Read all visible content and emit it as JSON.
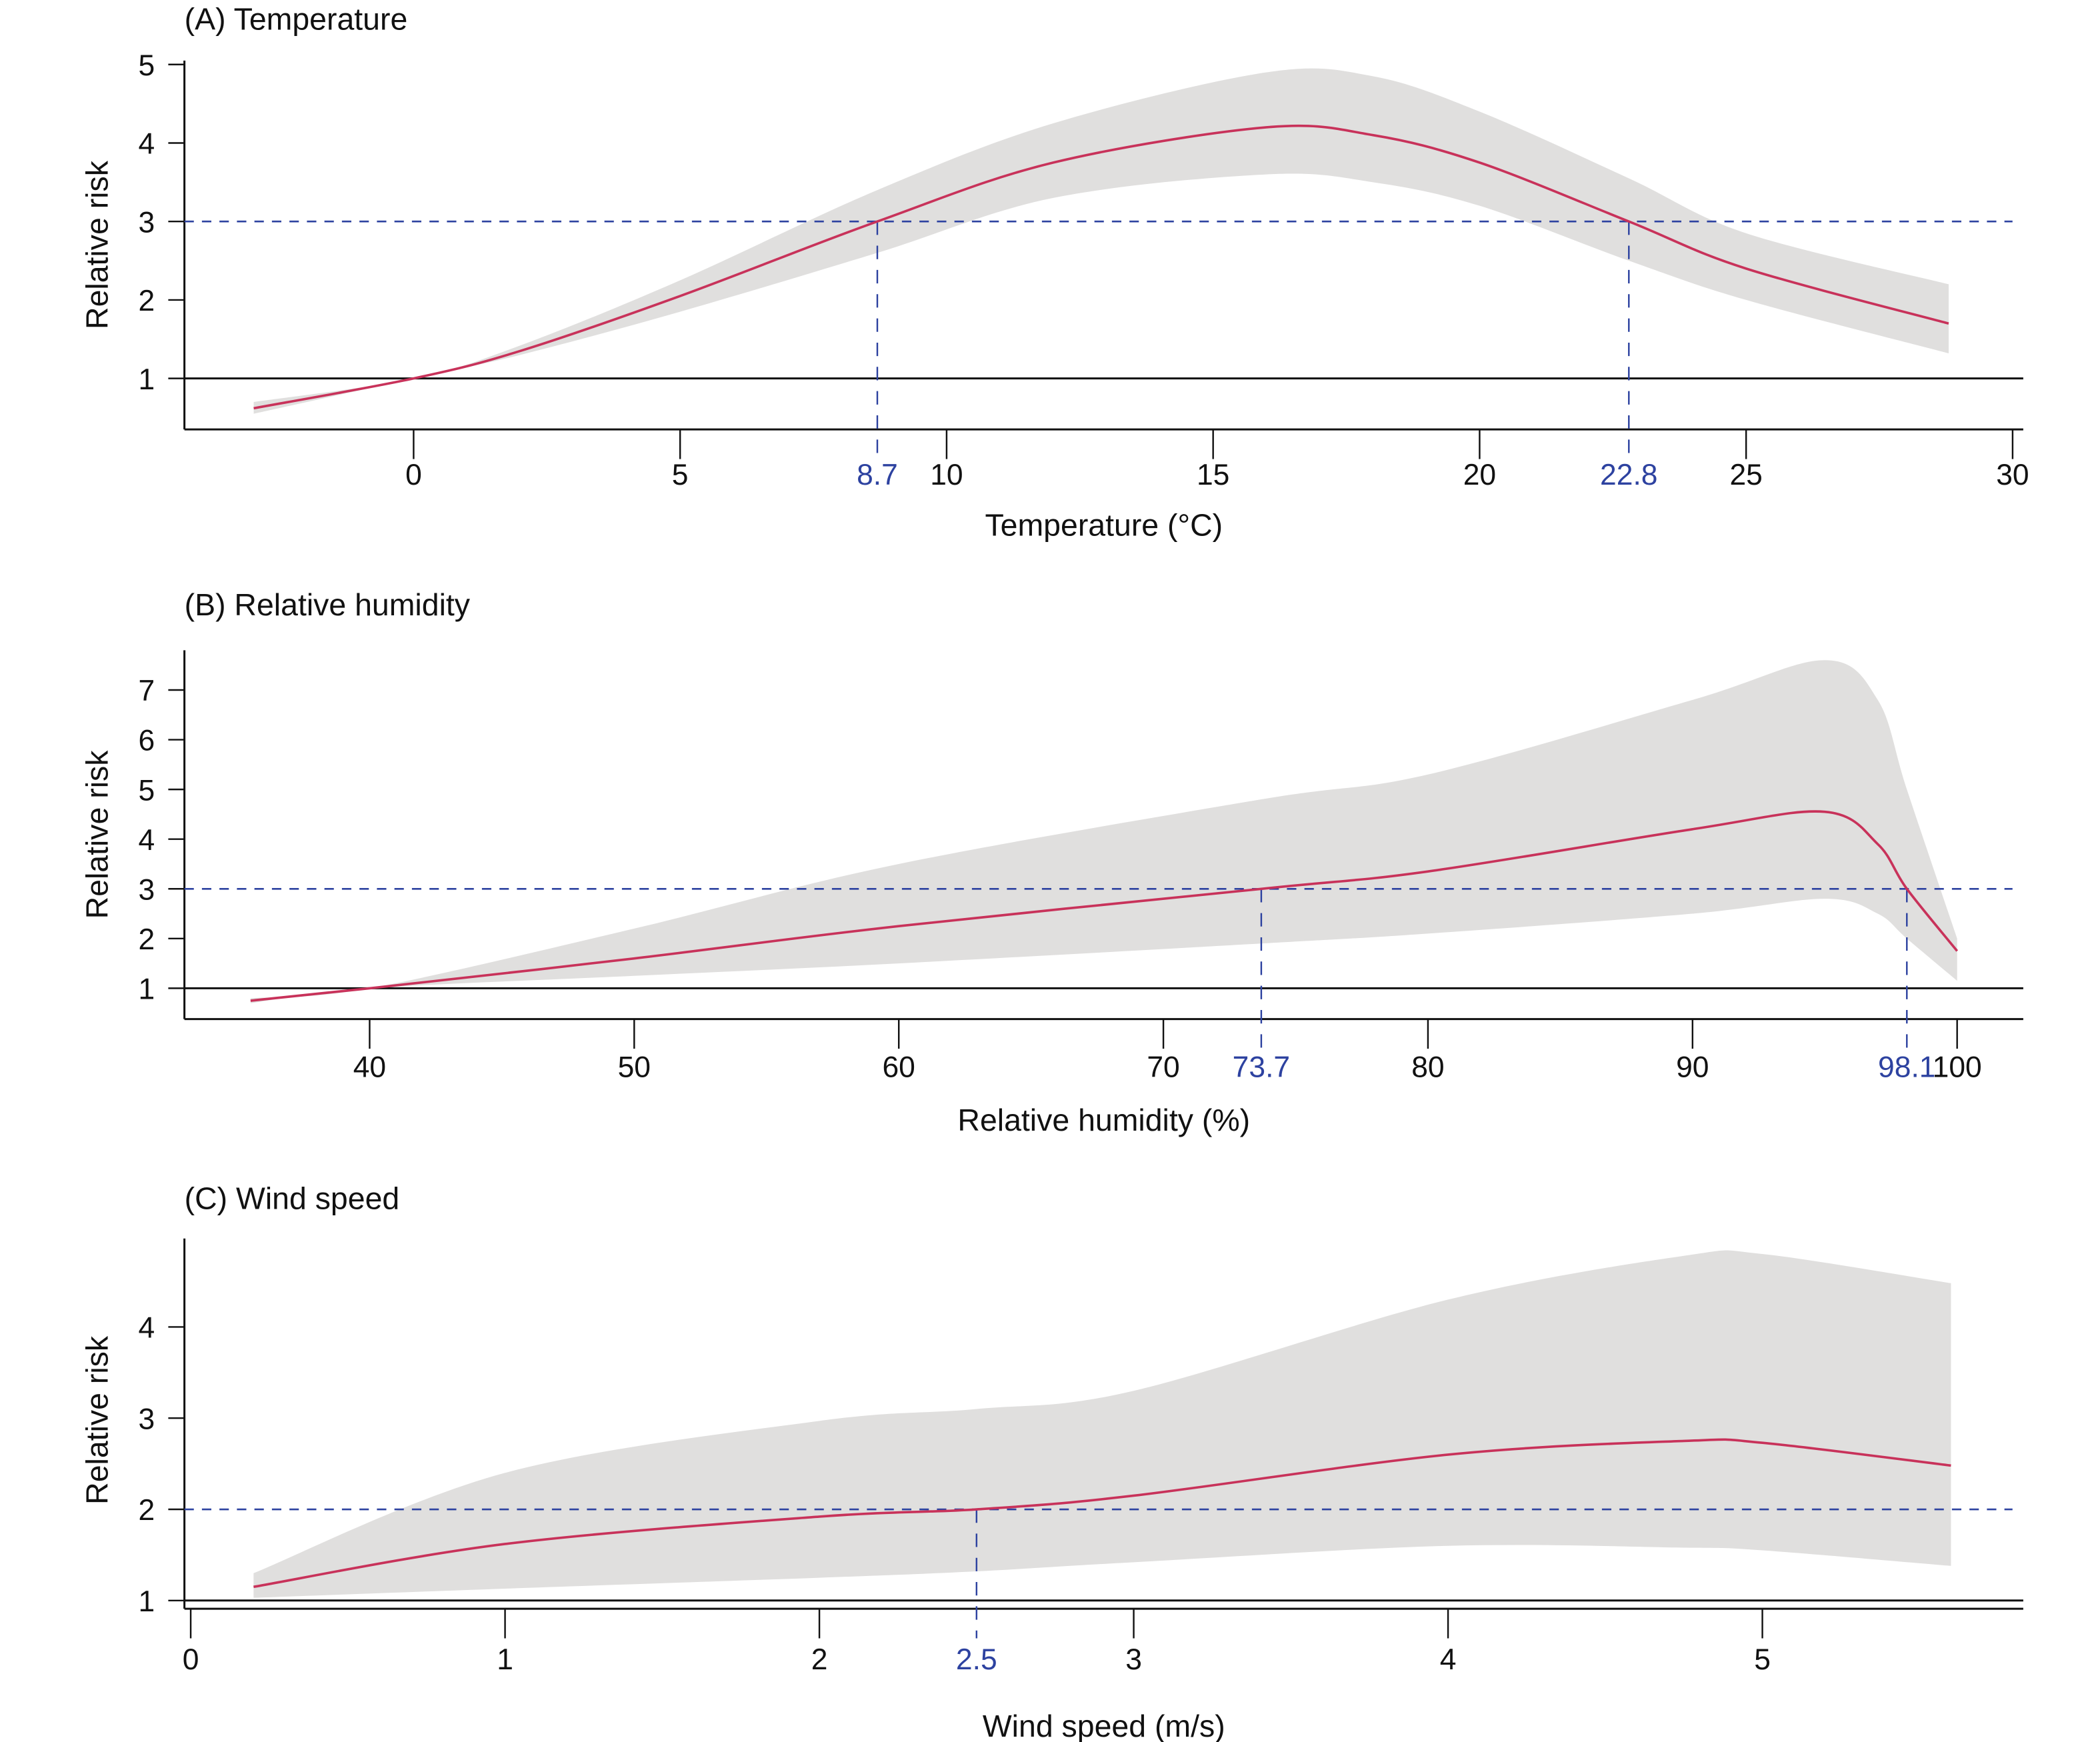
{
  "chart_data": [
    {
      "type": "line",
      "title": "(A) Temperature",
      "xlabel": "Temperature (°C)",
      "ylabel": "Relative risk",
      "xticks": [
        0,
        5,
        10,
        15,
        20,
        25,
        30
      ],
      "yticks": [
        1,
        2,
        3,
        4,
        5
      ],
      "xlim": [
        -4.3,
        30.2
      ],
      "ylim": [
        0.35,
        5.05
      ],
      "reference_line": 1,
      "threshold": 3,
      "threshold_x": [
        "8.7",
        "22.8"
      ],
      "x": [
        -3,
        0,
        2,
        5,
        8.7,
        12,
        16,
        18,
        20,
        22.8,
        25,
        28.8
      ],
      "rr": [
        0.62,
        1.0,
        1.35,
        2.05,
        3.0,
        3.75,
        4.2,
        4.1,
        3.75,
        3.0,
        2.4,
        1.7
      ],
      "lower": [
        0.55,
        1.0,
        1.3,
        1.85,
        2.6,
        3.3,
        3.6,
        3.5,
        3.2,
        2.5,
        2.0,
        1.32
      ],
      "upper": [
        0.7,
        1.0,
        1.42,
        2.25,
        3.4,
        4.25,
        4.9,
        4.85,
        4.4,
        3.55,
        2.85,
        2.2
      ]
    },
    {
      "type": "line",
      "title": "(B) Relative humidity",
      "xlabel": "Relative humidity (%)",
      "ylabel": "Relative risk",
      "xticks": [
        40,
        50,
        60,
        70,
        80,
        90,
        100
      ],
      "yticks": [
        1,
        2,
        3,
        4,
        5,
        6,
        7
      ],
      "xlim": [
        33,
        102.5
      ],
      "ylim": [
        0.38,
        7.8
      ],
      "reference_line": 1,
      "threshold": 3,
      "threshold_x": [
        "73.7",
        "98.1"
      ],
      "x": [
        35.5,
        40,
        50,
        60,
        73.7,
        80,
        90,
        95,
        97,
        98.1,
        100
      ],
      "rr": [
        0.75,
        1.0,
        1.6,
        2.25,
        3.0,
        3.35,
        4.2,
        4.55,
        3.9,
        3.0,
        1.75
      ],
      "lower": [
        0.7,
        1.0,
        1.25,
        1.5,
        1.9,
        2.1,
        2.5,
        2.8,
        2.5,
        2.0,
        1.15
      ],
      "upper": [
        0.8,
        1.0,
        2.2,
        3.5,
        4.8,
        5.3,
        6.8,
        7.6,
        6.8,
        5.0,
        2.0
      ]
    },
    {
      "type": "line",
      "title": "(C) Wind speed",
      "xlabel": "Wind speed (m/s)",
      "ylabel": "Relative risk",
      "xticks": [
        0,
        1,
        2,
        3,
        4,
        5
      ],
      "yticks": [
        1,
        2,
        3,
        4
      ],
      "xlim": [
        -0.02,
        5.83
      ],
      "ylim": [
        0.91,
        4.97
      ],
      "reference_line": 1,
      "threshold": 2,
      "threshold_x": [
        "2.5"
      ],
      "x": [
        0.2,
        1,
        2,
        2.5,
        3,
        4,
        4.75,
        5,
        5.6
      ],
      "rr": [
        1.15,
        1.62,
        1.92,
        2.0,
        2.15,
        2.6,
        2.75,
        2.73,
        2.48
      ],
      "lower": [
        1.03,
        1.13,
        1.25,
        1.32,
        1.42,
        1.6,
        1.58,
        1.55,
        1.38
      ],
      "upper": [
        1.3,
        2.4,
        2.97,
        3.1,
        3.3,
        4.3,
        4.78,
        4.8,
        4.48
      ]
    }
  ],
  "colors": {
    "line": "#c8325a",
    "band": "#e0dfde",
    "threshold": "#2d42a0",
    "axis": "#111111"
  }
}
